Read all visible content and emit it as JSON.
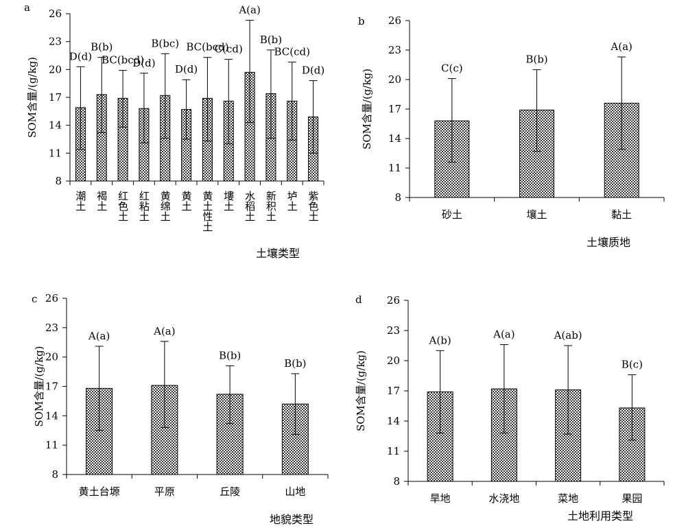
{
  "chart_data": [
    {
      "panel_label": "a",
      "type": "bar",
      "ylabel": "SOM含量/(g/kg)",
      "xlabel": "土壤类型",
      "ylim": [
        8,
        26
      ],
      "yticks": [
        8,
        11,
        14,
        17,
        20,
        23,
        26
      ],
      "categories": [
        "潮土",
        "褐土",
        "红色土",
        "红粘土",
        "黄绵土",
        "黄土",
        "黄土性土",
        "塿土",
        "水稻土",
        "新积土",
        "垆土",
        "紫色土"
      ],
      "values": [
        15.9,
        17.3,
        16.9,
        15.8,
        17.2,
        15.7,
        16.9,
        16.6,
        19.7,
        17.4,
        16.6,
        14.9
      ],
      "error_low": [
        11.4,
        13.2,
        13.8,
        12.1,
        12.6,
        12.5,
        12.3,
        12.0,
        14.3,
        12.6,
        12.4,
        11.0
      ],
      "error_high": [
        20.3,
        21.3,
        19.9,
        19.6,
        21.7,
        18.9,
        21.3,
        21.1,
        25.3,
        22.1,
        20.8,
        18.8
      ],
      "labels": [
        "D(d)",
        "B(b)",
        "BC(bcd)",
        "D(d)",
        "B(bc)",
        "D(d)",
        "BC(bcd)",
        "C(cd)",
        "A(a)",
        "B(b)",
        "BC(cd)",
        "D(d)"
      ]
    },
    {
      "panel_label": "b",
      "type": "bar",
      "ylabel": "SOM含量/(g/kg)",
      "xlabel": "土壤质地",
      "ylim": [
        8,
        26
      ],
      "yticks": [
        8,
        11,
        14,
        17,
        20,
        23,
        26
      ],
      "categories": [
        "砂土",
        "壤土",
        "黏土"
      ],
      "values": [
        15.8,
        16.9,
        17.6
      ],
      "error_low": [
        11.6,
        12.7,
        12.9
      ],
      "error_high": [
        20.1,
        21.0,
        22.3
      ],
      "labels": [
        "C(c)",
        "B(b)",
        "A(a)"
      ]
    },
    {
      "panel_label": "c",
      "type": "bar",
      "ylabel": "SOM含量/(g/kg)",
      "xlabel": "地貌类型",
      "ylim": [
        8,
        26
      ],
      "yticks": [
        8,
        11,
        14,
        17,
        20,
        23,
        26
      ],
      "categories": [
        "黄土台塬",
        "平原",
        "丘陵",
        "山地"
      ],
      "values": [
        16.8,
        17.1,
        16.2,
        15.2
      ],
      "error_low": [
        12.5,
        12.8,
        13.2,
        12.1
      ],
      "error_high": [
        21.1,
        21.6,
        19.1,
        18.3
      ],
      "labels": [
        "A(a)",
        "A(a)",
        "B(b)",
        "B(b)"
      ]
    },
    {
      "panel_label": "d",
      "type": "bar",
      "ylabel": "SOM含量/(g/kg)",
      "xlabel": "土地利用类型",
      "ylim": [
        8,
        26
      ],
      "yticks": [
        8,
        11,
        14,
        17,
        20,
        23,
        26
      ],
      "categories": [
        "旱地",
        "水浇地",
        "菜地",
        "果园"
      ],
      "values": [
        16.9,
        17.2,
        17.1,
        15.3
      ],
      "error_low": [
        12.8,
        12.8,
        12.7,
        12.1
      ],
      "error_high": [
        21.0,
        21.6,
        21.5,
        18.6
      ],
      "labels": [
        "A(b)",
        "A(a)",
        "A(ab)",
        "B(c)"
      ]
    }
  ]
}
